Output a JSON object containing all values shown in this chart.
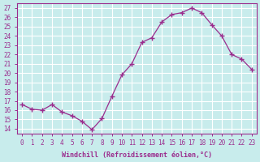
{
  "x": [
    0,
    1,
    2,
    3,
    4,
    5,
    6,
    7,
    8,
    9,
    10,
    11,
    12,
    13,
    14,
    15,
    16,
    17,
    18,
    19,
    20,
    21,
    22,
    23
  ],
  "y": [
    16.6,
    16.1,
    16.0,
    16.6,
    15.8,
    15.4,
    14.8,
    13.9,
    15.1,
    17.5,
    19.8,
    21.0,
    23.3,
    23.8,
    25.5,
    26.3,
    26.5,
    27.0,
    26.5,
    25.2,
    24.0,
    22.0,
    21.5,
    20.4
  ],
  "line_color": "#9b2d8e",
  "marker": "+",
  "bg_color": "#c8ecec",
  "grid_color": "#ffffff",
  "xlabel": "Windchill (Refroidissement éolien,°C)",
  "xlabel_color": "#9b2d8e",
  "ylabel_ticks": [
    14,
    15,
    16,
    17,
    18,
    19,
    20,
    21,
    22,
    23,
    24,
    25,
    26,
    27
  ],
  "ylim": [
    13.5,
    27.5
  ],
  "xlim": [
    -0.5,
    23.5
  ],
  "xticks": [
    0,
    1,
    2,
    3,
    4,
    5,
    6,
    7,
    8,
    9,
    10,
    11,
    12,
    13,
    14,
    15,
    16,
    17,
    18,
    19,
    20,
    21,
    22,
    23
  ],
  "tick_color": "#9b2d8e",
  "spine_color": "#9b2d8e"
}
